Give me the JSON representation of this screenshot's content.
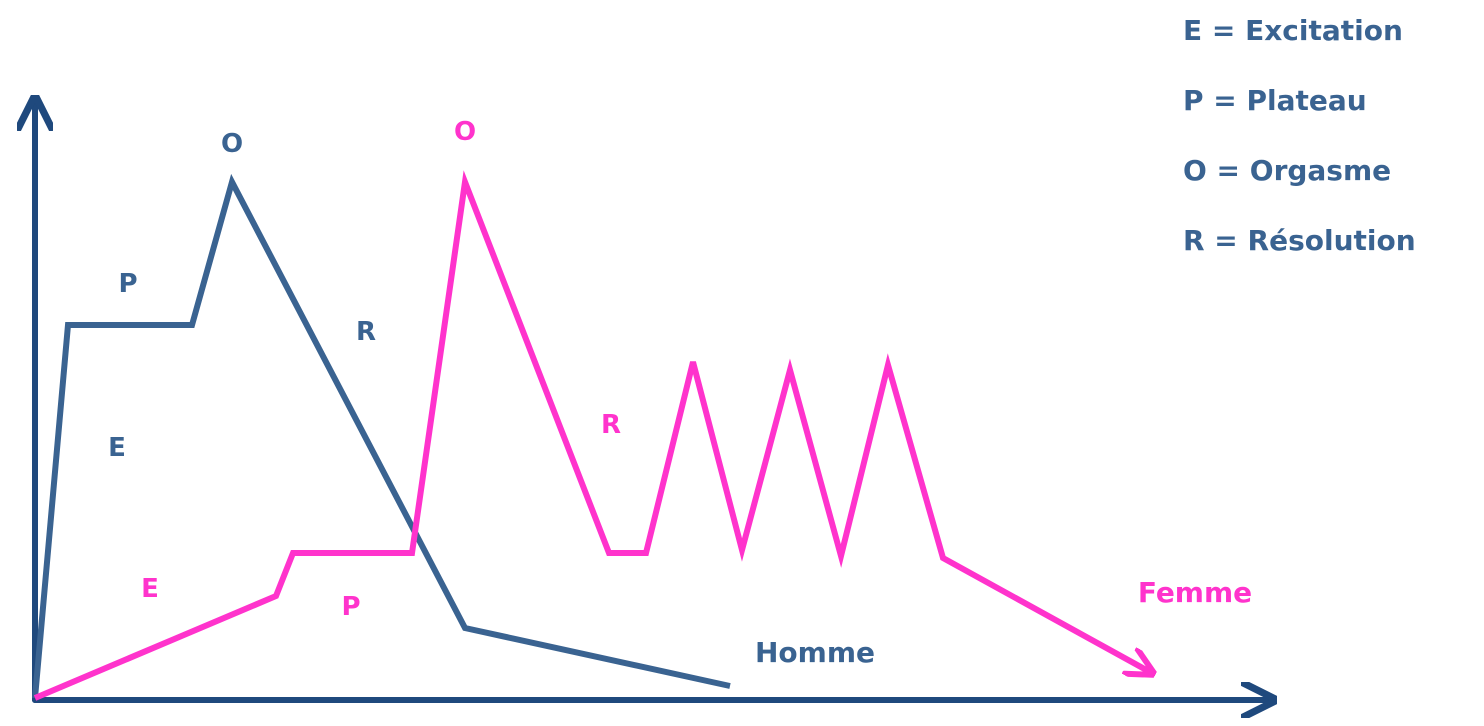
{
  "colors": {
    "axis": "#1f497d",
    "homme": "#3a6391",
    "femme": "#ff33cc"
  },
  "legend": [
    "E = Excitation",
    "P = Plateau",
    "O = Orgasme",
    "R = Résolution"
  ],
  "homme": {
    "name": "Homme",
    "phase_labels": {
      "E": "E",
      "P": "P",
      "O": "O",
      "R": "R"
    }
  },
  "femme": {
    "name": "Femme",
    "phase_labels": {
      "E": "E",
      "P": "P",
      "O": "O",
      "R": "R"
    }
  }
}
